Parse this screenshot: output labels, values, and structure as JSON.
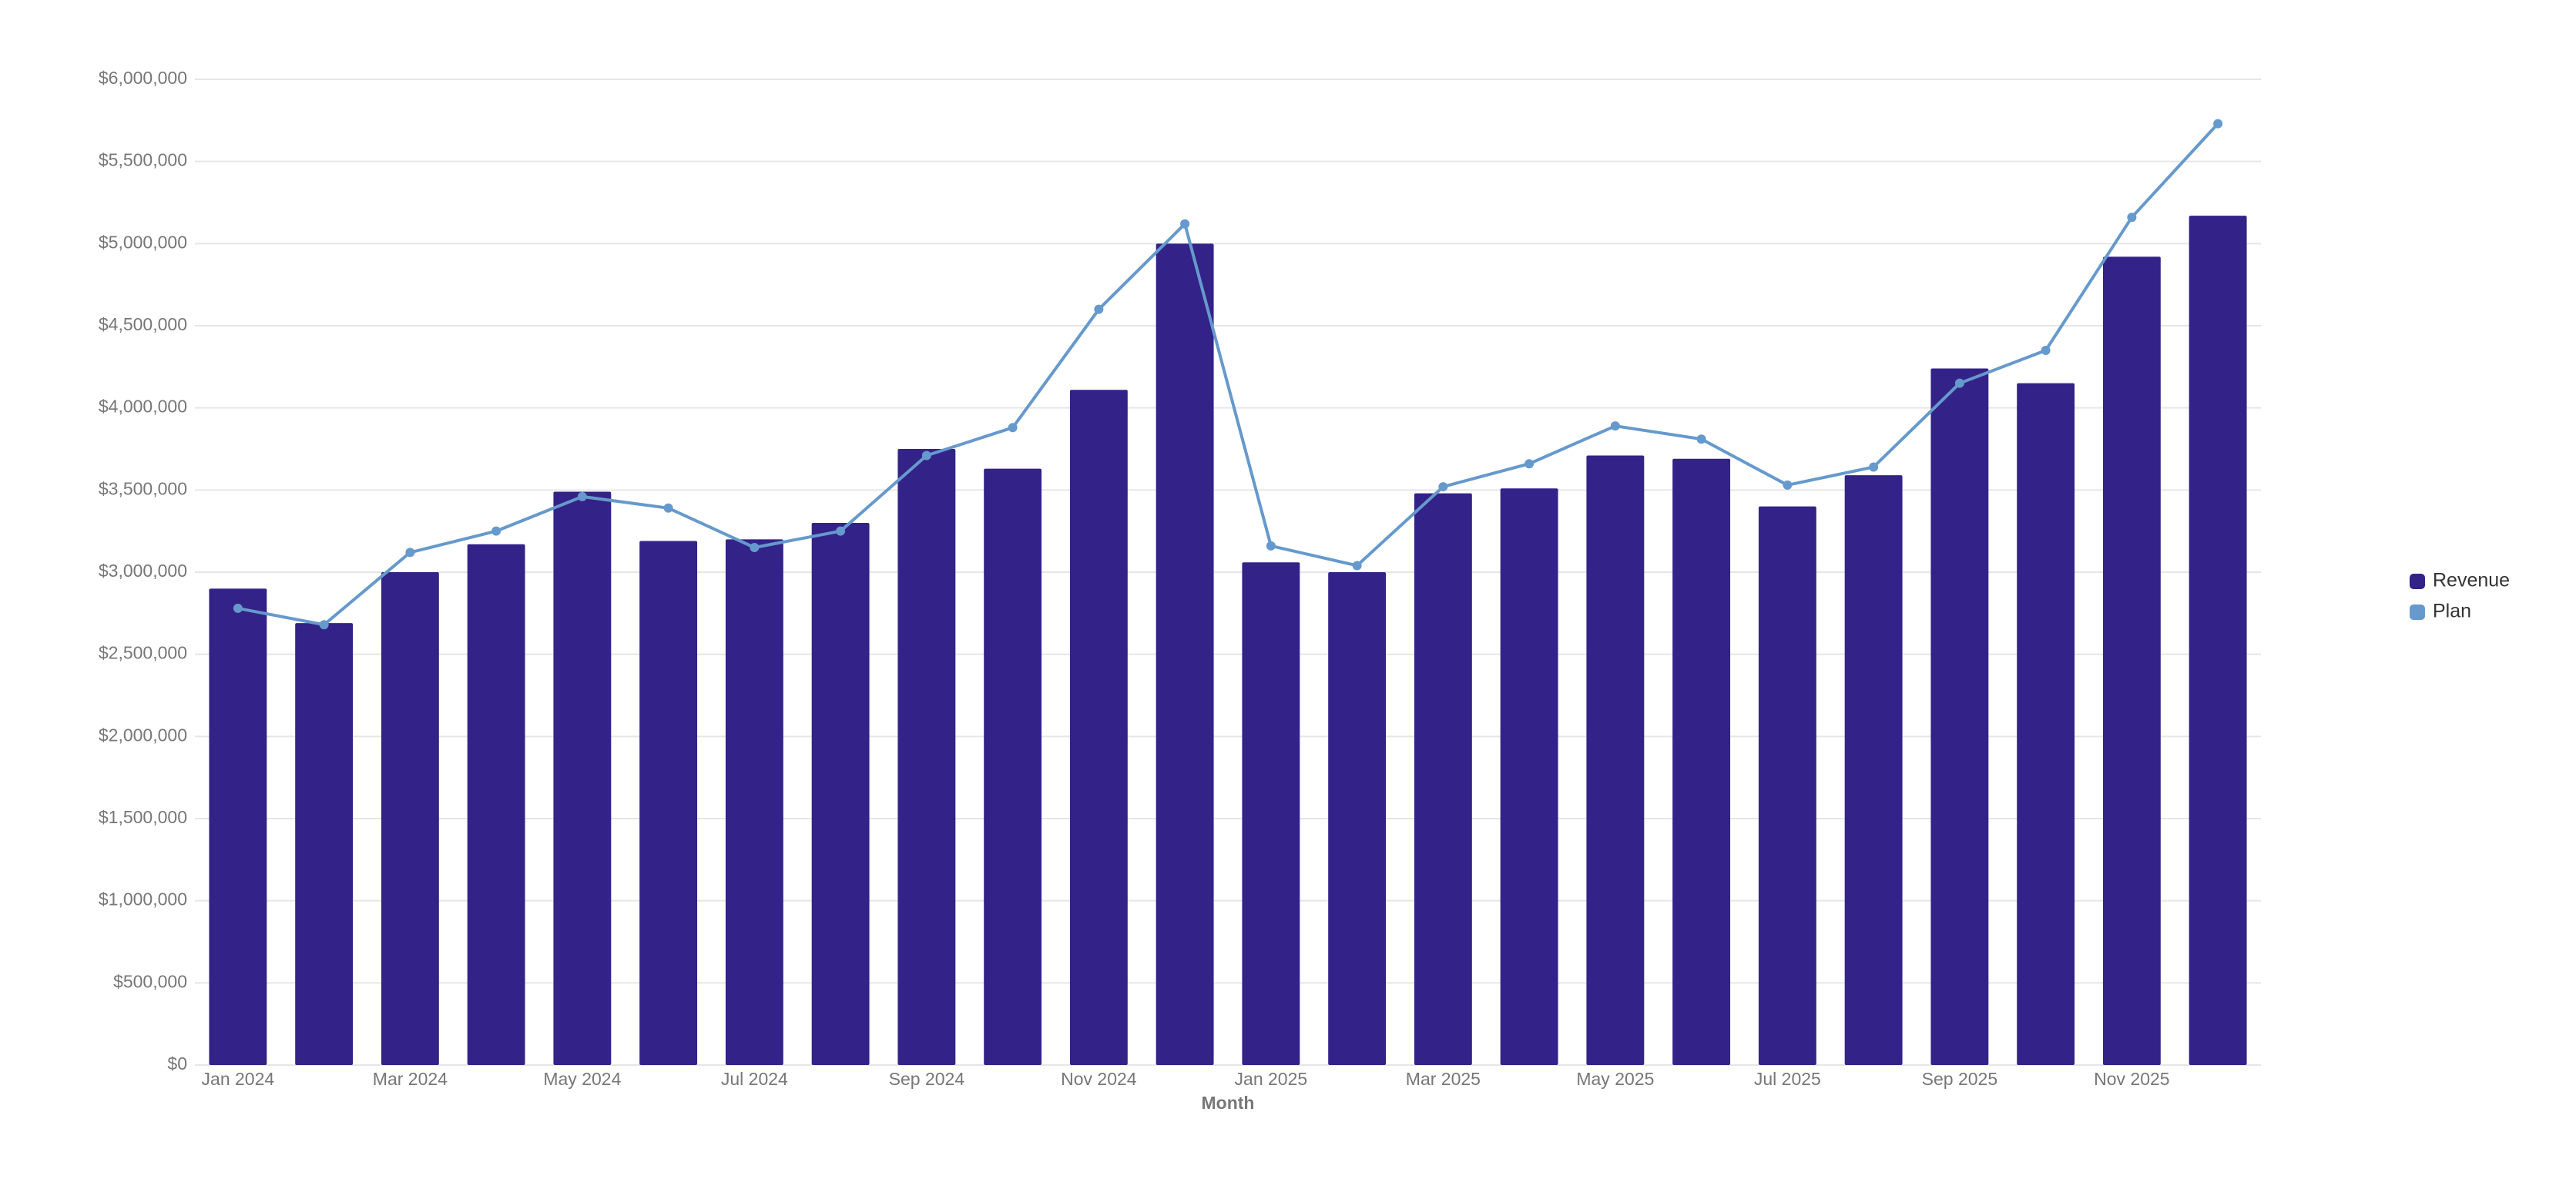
{
  "chart_data": {
    "type": "bar-line",
    "x_label": "Month",
    "categories": [
      "Jan 2024",
      null,
      "Mar 2024",
      null,
      "May 2024",
      null,
      "Jul 2024",
      null,
      "Sep 2024",
      null,
      "Nov 2024",
      null,
      "Jan 2025",
      null,
      "Mar 2025",
      null,
      "May 2025",
      null,
      "Jul 2025",
      null,
      "Sep 2025",
      null,
      "Nov 2025",
      null
    ],
    "series": [
      {
        "name": "Revenue",
        "type": "bar",
        "color": "#332288",
        "values": [
          2900000,
          2690000,
          3000000,
          3170000,
          3490000,
          3190000,
          3200000,
          3300000,
          3750000,
          3630000,
          4110000,
          5000000,
          3060000,
          3000000,
          3480000,
          3510000,
          3710000,
          3690000,
          3400000,
          3590000,
          4240000,
          4150000,
          4920000,
          5170000
        ]
      },
      {
        "name": "Plan",
        "type": "line",
        "color": "#6699cc",
        "values": [
          2780000,
          2680000,
          3120000,
          3250000,
          3460000,
          3390000,
          3150000,
          3250000,
          3710000,
          3880000,
          4600000,
          5120000,
          3160000,
          3040000,
          3520000,
          3660000,
          3890000,
          3810000,
          3530000,
          3640000,
          4150000,
          4350000,
          5160000,
          5730000
        ]
      }
    ],
    "ylim": [
      0,
      6000000
    ],
    "yticks": [
      {
        "value": 0,
        "label": "$0"
      },
      {
        "value": 500000,
        "label": "$500,000"
      },
      {
        "value": 1000000,
        "label": "$1,000,000"
      },
      {
        "value": 1500000,
        "label": "$1,500,000"
      },
      {
        "value": 2000000,
        "label": "$2,000,000"
      },
      {
        "value": 2500000,
        "label": "$2,500,000"
      },
      {
        "value": 3000000,
        "label": "$3,000,000"
      },
      {
        "value": 3500000,
        "label": "$3,500,000"
      },
      {
        "value": 4000000,
        "label": "$4,000,000"
      },
      {
        "value": 4500000,
        "label": "$4,500,000"
      },
      {
        "value": 5000000,
        "label": "$5,000,000"
      },
      {
        "value": 5500000,
        "label": "$5,500,000"
      },
      {
        "value": 6000000,
        "label": "$6,000,000"
      }
    ],
    "grid": true,
    "legend": "right"
  }
}
